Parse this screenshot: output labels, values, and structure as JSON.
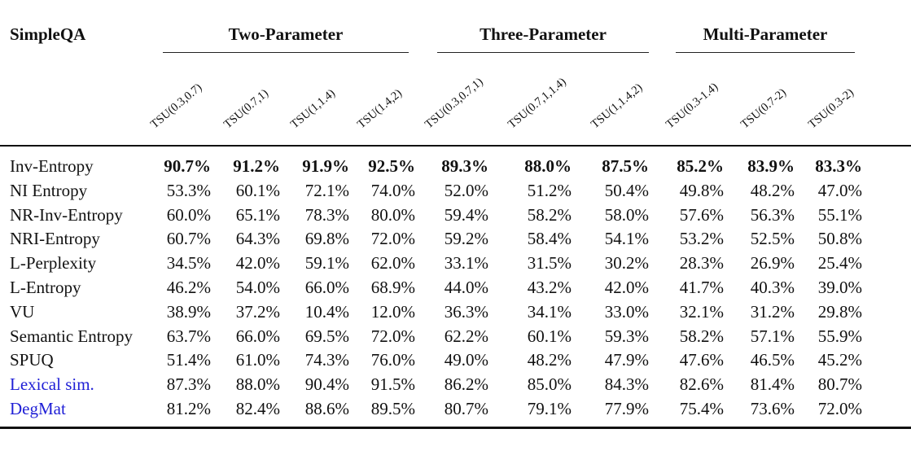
{
  "table": {
    "title": "SimpleQA",
    "groups": [
      {
        "label": "Two-Parameter"
      },
      {
        "label": "Three-Parameter"
      },
      {
        "label": "Multi-Parameter"
      }
    ],
    "columns": [
      "TSU(0.3,0.7)",
      "TSU(0.7,1)",
      "TSU(1,1.4)",
      "TSU(1.4,2)",
      "TSU(0.3,0.7,1)",
      "TSU(0.7,1,1.4)",
      "TSU(1,1.4,2)",
      "TSU(0.3-1.4)",
      "TSU(0.7-2)",
      "TSU(0.3-2)"
    ],
    "rows": [
      {
        "label": "Inv-Entropy",
        "bold": true,
        "link": false,
        "values": [
          "90.7%",
          "91.2%",
          "91.9%",
          "92.5%",
          "89.3%",
          "88.0%",
          "87.5%",
          "85.2%",
          "83.9%",
          "83.3%"
        ]
      },
      {
        "label": "NI Entropy",
        "bold": false,
        "link": false,
        "values": [
          "53.3%",
          "60.1%",
          "72.1%",
          "74.0%",
          "52.0%",
          "51.2%",
          "50.4%",
          "49.8%",
          "48.2%",
          "47.0%"
        ]
      },
      {
        "label": "NR-Inv-Entropy",
        "bold": false,
        "link": false,
        "values": [
          "60.0%",
          "65.1%",
          "78.3%",
          "80.0%",
          "59.4%",
          "58.2%",
          "58.0%",
          "57.6%",
          "56.3%",
          "55.1%"
        ]
      },
      {
        "label": "NRI-Entropy",
        "bold": false,
        "link": false,
        "values": [
          "60.7%",
          "64.3%",
          "69.8%",
          "72.0%",
          "59.2%",
          "58.4%",
          "54.1%",
          "53.2%",
          "52.5%",
          "50.8%"
        ]
      },
      {
        "label": "L-Perplexity",
        "bold": false,
        "link": false,
        "values": [
          "34.5%",
          "42.0%",
          "59.1%",
          "62.0%",
          "33.1%",
          "31.5%",
          "30.2%",
          "28.3%",
          "26.9%",
          "25.4%"
        ]
      },
      {
        "label": "L-Entropy",
        "bold": false,
        "link": false,
        "values": [
          "46.2%",
          "54.0%",
          "66.0%",
          "68.9%",
          "44.0%",
          "43.2%",
          "42.0%",
          "41.7%",
          "40.3%",
          "39.0%"
        ]
      },
      {
        "label": "VU",
        "bold": false,
        "link": false,
        "values": [
          "38.9%",
          "37.2%",
          "10.4%",
          "12.0%",
          "36.3%",
          "34.1%",
          "33.0%",
          "32.1%",
          "31.2%",
          "29.8%"
        ]
      },
      {
        "label": "Semantic Entropy",
        "bold": false,
        "link": false,
        "values": [
          "63.7%",
          "66.0%",
          "69.5%",
          "72.0%",
          "62.2%",
          "60.1%",
          "59.3%",
          "58.2%",
          "57.1%",
          "55.9%"
        ]
      },
      {
        "label": "SPUQ",
        "bold": false,
        "link": false,
        "values": [
          "51.4%",
          "61.0%",
          "74.3%",
          "76.0%",
          "49.0%",
          "48.2%",
          "47.9%",
          "47.6%",
          "46.5%",
          "45.2%"
        ]
      },
      {
        "label": "Lexical sim.",
        "bold": false,
        "link": true,
        "values": [
          "87.3%",
          "88.0%",
          "90.4%",
          "91.5%",
          "86.2%",
          "85.0%",
          "84.3%",
          "82.6%",
          "81.4%",
          "80.7%"
        ]
      },
      {
        "label": "DegMat",
        "bold": false,
        "link": true,
        "values": [
          "81.2%",
          "82.4%",
          "88.6%",
          "89.5%",
          "80.7%",
          "79.1%",
          "77.9%",
          "75.4%",
          "73.6%",
          "72.0%"
        ]
      }
    ]
  }
}
